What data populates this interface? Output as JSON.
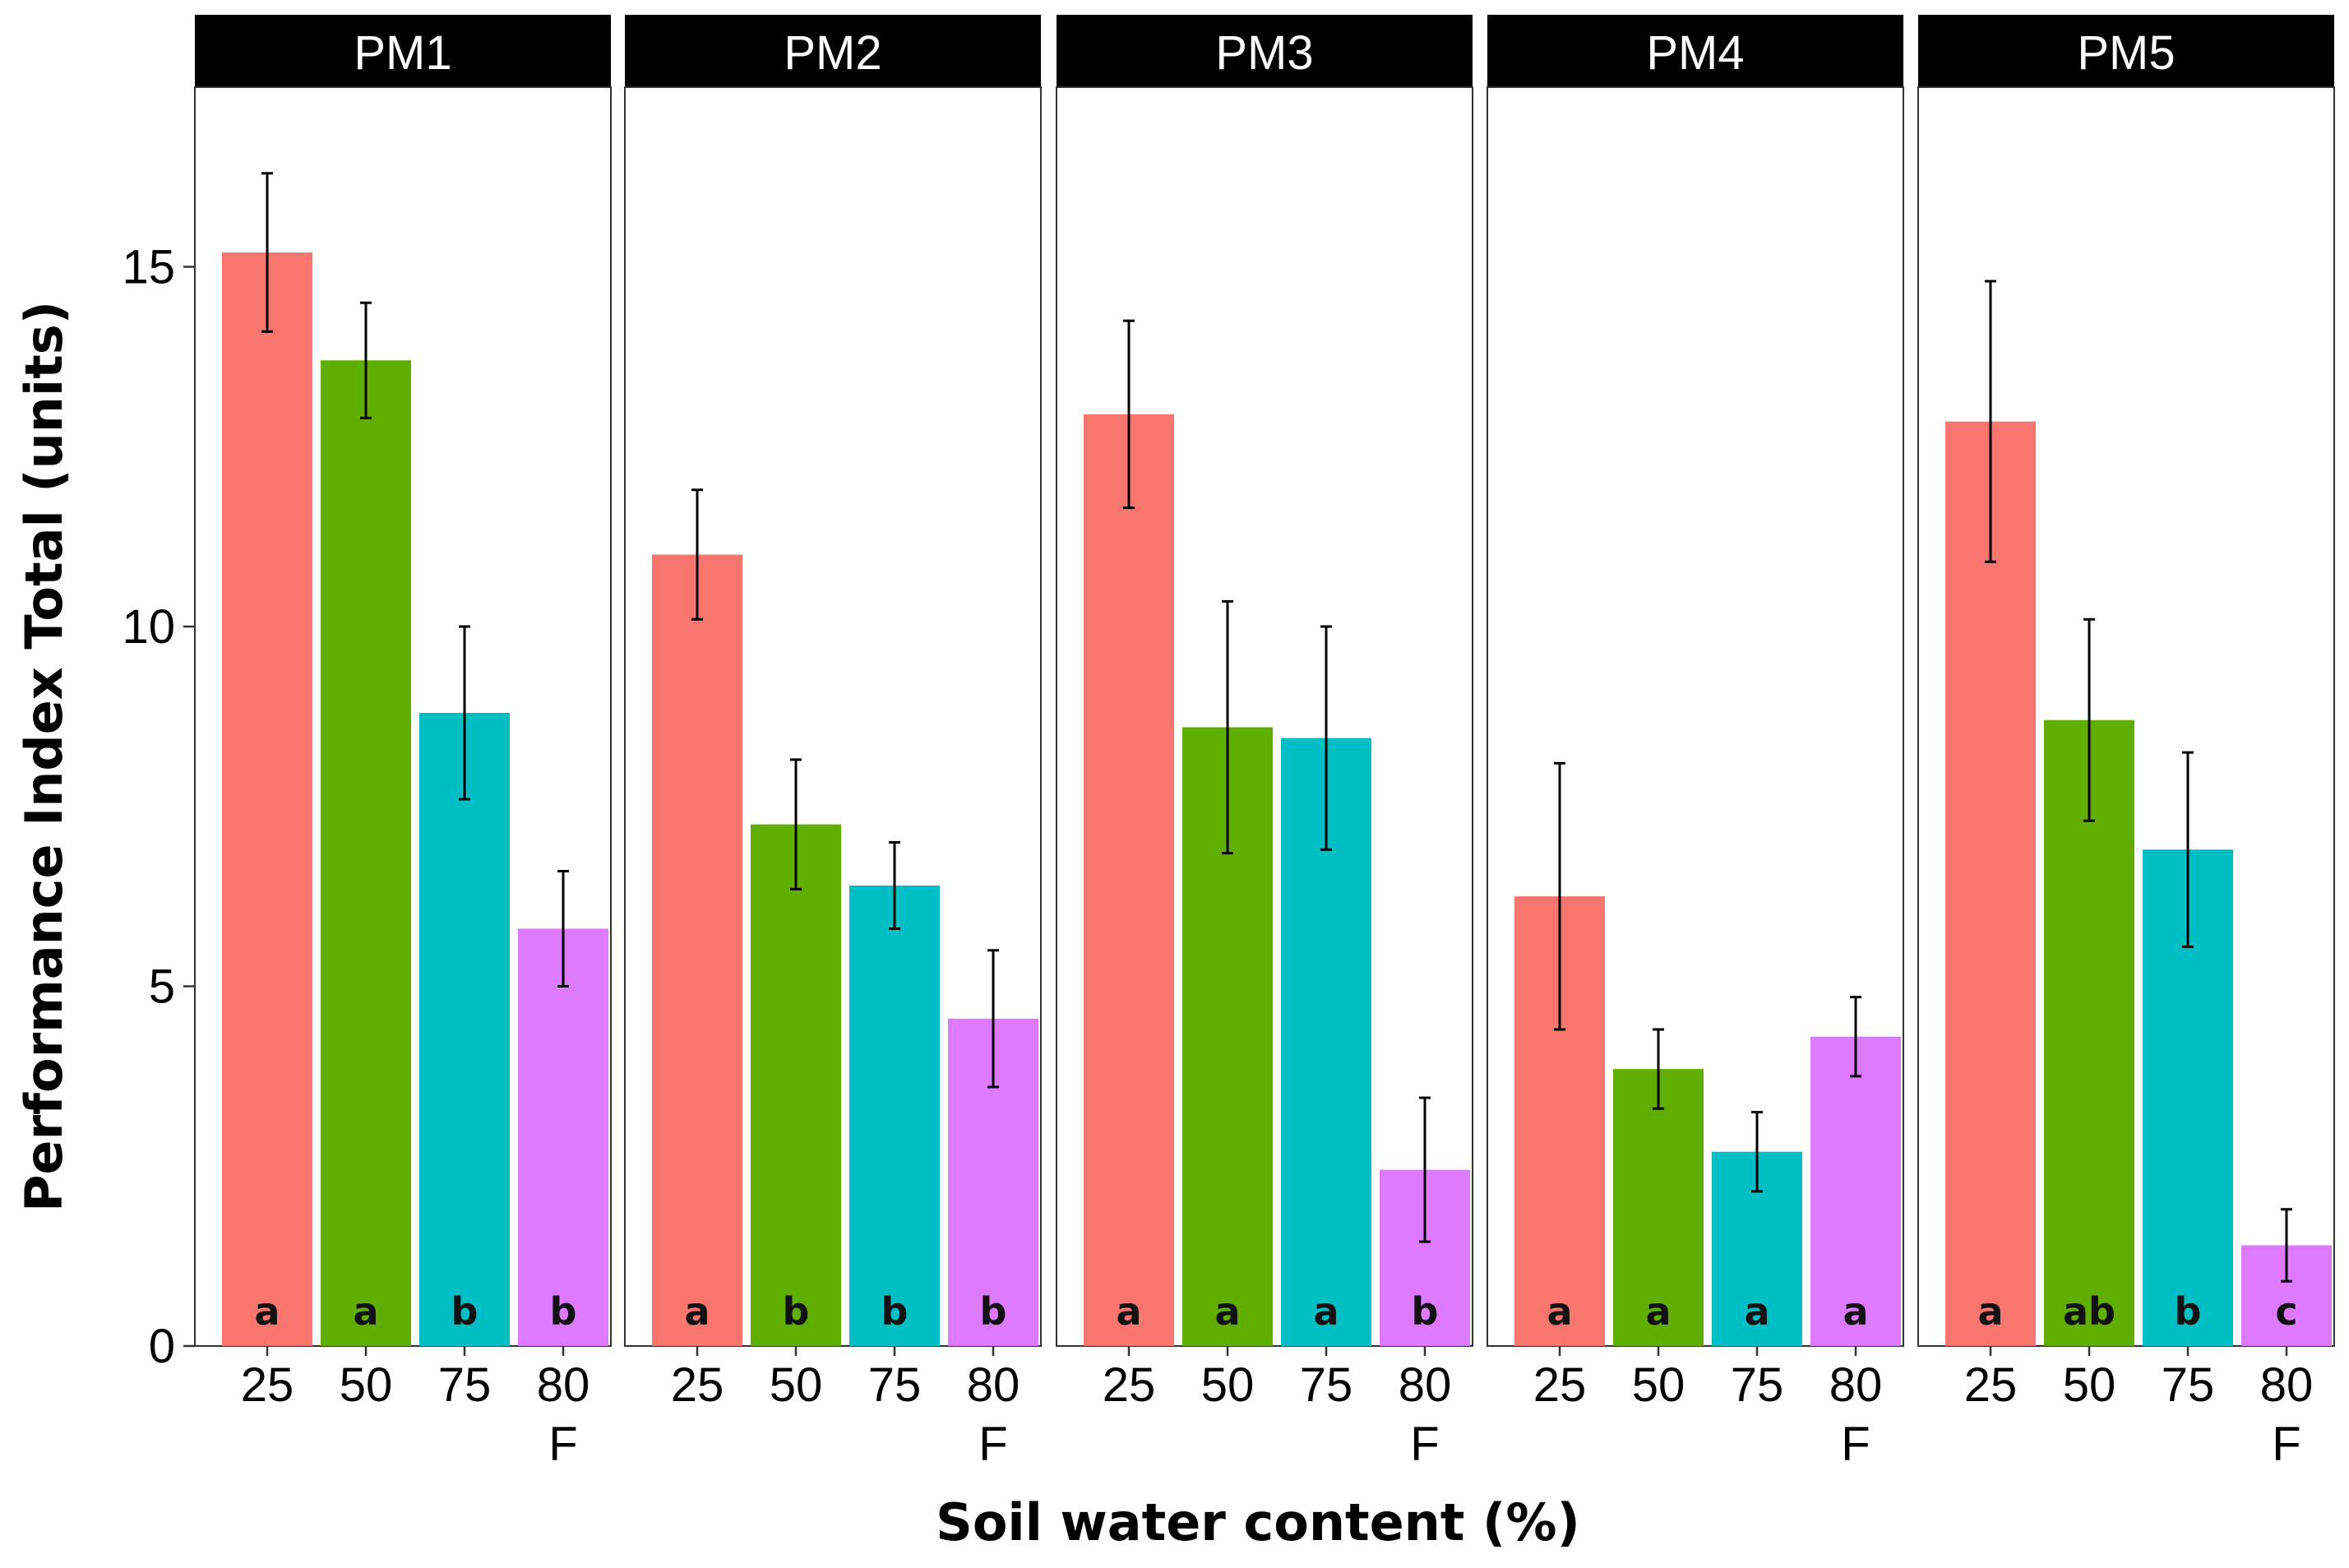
{
  "chart_data": {
    "type": "bar",
    "layout": "faceted",
    "xlabel": "Soil water content (%)",
    "ylabel": "Performance Index Total (units)",
    "ylim": [
      0,
      17.5
    ],
    "y_ticks": [
      0,
      5,
      10,
      15
    ],
    "grid": false,
    "categories": [
      "25",
      "50",
      "75",
      "80\nF"
    ],
    "category_colors": [
      "#F8766D",
      "#5FAE00",
      "#00BFC4",
      "#DD7AFF"
    ],
    "panels": [
      {
        "name": "PM1",
        "values": [
          15.2,
          13.7,
          8.8,
          5.8
        ],
        "errors": [
          1.1,
          0.8,
          1.2,
          0.8
        ],
        "letters": [
          "a",
          "a",
          "b",
          "b"
        ]
      },
      {
        "name": "PM2",
        "values": [
          11.0,
          7.25,
          6.4,
          4.55
        ],
        "errors": [
          0.9,
          0.9,
          0.6,
          0.95
        ],
        "letters": [
          "a",
          "b",
          "b",
          "b"
        ]
      },
      {
        "name": "PM3",
        "values": [
          12.95,
          8.6,
          8.45,
          2.45
        ],
        "errors": [
          1.3,
          1.75,
          1.55,
          1.0
        ],
        "letters": [
          "a",
          "a",
          "a",
          "b"
        ]
      },
      {
        "name": "PM4",
        "values": [
          6.25,
          3.85,
          2.7,
          4.3
        ],
        "errors": [
          1.85,
          0.55,
          0.55,
          0.55
        ],
        "letters": [
          "a",
          "a",
          "a",
          "a"
        ]
      },
      {
        "name": "PM5",
        "values": [
          12.85,
          8.7,
          6.9,
          1.4
        ],
        "errors": [
          1.95,
          1.4,
          1.35,
          0.5
        ],
        "letters": [
          "a",
          "ab",
          "b",
          "c"
        ]
      }
    ]
  }
}
